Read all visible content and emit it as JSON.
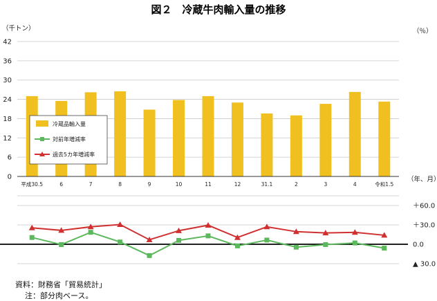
{
  "chart_data": {
    "type": "bar+line",
    "title": "図２　冷蔵牛肉輸入量の推移",
    "categories": [
      "平成30.5",
      "6",
      "7",
      "8",
      "9",
      "10",
      "11",
      "12",
      "31.1",
      "2",
      "3",
      "4",
      "令和1.5"
    ],
    "top_panel": {
      "unit_label": "（千トン）",
      "ylim": [
        0,
        42
      ],
      "yticks": [
        "42",
        "36",
        "30",
        "24",
        "18",
        "12",
        "6",
        "0"
      ],
      "series": [
        {
          "name": "冷蔵品輸入量",
          "type": "bar",
          "color": "#f0c020",
          "values": [
            25.0,
            23.5,
            26.2,
            26.5,
            20.8,
            23.8,
            25.0,
            23.0,
            19.6,
            19.0,
            22.6,
            26.3,
            23.3
          ]
        }
      ]
    },
    "bottom_panel": {
      "unit_label": "（％）",
      "period_label": "（年、月）",
      "ylim": [
        -45,
        75
      ],
      "yticks": [
        "＋60.0",
        "＋30.0",
        "0.0",
        "▲ 30.0"
      ],
      "series": [
        {
          "name": "対前年増減率",
          "type": "line",
          "color": "#5cb85c",
          "marker": "square",
          "values": [
            10.5,
            -0.5,
            18.5,
            3.5,
            -17.5,
            6.0,
            13.0,
            -2.5,
            6.5,
            -4.5,
            -0.5,
            2.0,
            -6.0
          ]
        },
        {
          "name": "過去5カ年増減率",
          "type": "line",
          "color": "#d03030",
          "marker": "triangle",
          "values": [
            25.5,
            21.5,
            27.0,
            30.5,
            7.0,
            21.0,
            29.5,
            10.5,
            27.0,
            19.5,
            17.5,
            18.5,
            14.0
          ]
        }
      ]
    },
    "legend_position": "left"
  },
  "notes": {
    "source": "資料：財務省「貿易統計」",
    "remark": "注：部分肉ベース。"
  }
}
